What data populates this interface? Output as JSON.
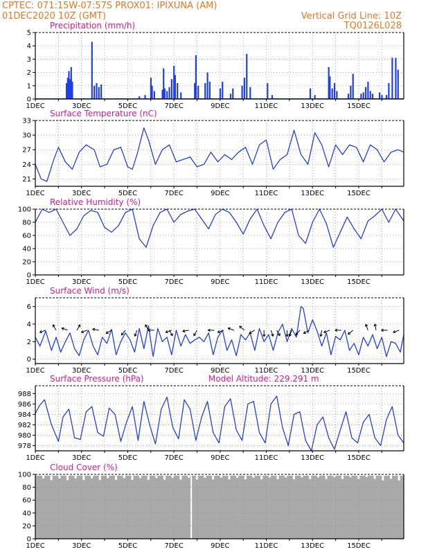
{
  "header": {
    "line1_left": "CPTEC:   071:15W-07:57S   PROX01: IPIXUNA (AM)",
    "line2_left": "01DEC2020 10Z (GMT)",
    "line2_right": "Vertical Grid Line: 10Z",
    "line3_right": "TQ0126L028"
  },
  "colors": {
    "header": "#e87722",
    "panel_title": "#e0178c",
    "series": "#1f3fe6",
    "cloud": "#a9a9a9",
    "arrow": "#000000",
    "grid": "#8a8a8a"
  },
  "chart_data": [
    {
      "id": "precip",
      "type": "bar",
      "title": "Precipitation (mm/h)",
      "ylim": [
        0,
        5
      ],
      "yticks": [
        0,
        1,
        2,
        3,
        4,
        5
      ],
      "grid": true,
      "x_unit": "days since 01DEC2020 10Z",
      "x_ticks": [
        "1DEC",
        "3DEC",
        "5DEC",
        "7DEC",
        "9DEC",
        "11DEC",
        "13DEC",
        "15DEC"
      ],
      "events": [
        {
          "x": 1.35,
          "y": 1.2
        },
        {
          "x": 1.4,
          "y": 1.6
        },
        {
          "x": 1.45,
          "y": 2.1
        },
        {
          "x": 1.5,
          "y": 1.5
        },
        {
          "x": 1.55,
          "y": 2.4
        },
        {
          "x": 1.6,
          "y": 1.3
        },
        {
          "x": 2.45,
          "y": 4.3
        },
        {
          "x": 2.55,
          "y": 1.0
        },
        {
          "x": 2.65,
          "y": 1.2
        },
        {
          "x": 2.75,
          "y": 0.9
        },
        {
          "x": 2.85,
          "y": 1.1
        },
        {
          "x": 4.5,
          "y": 0.2
        },
        {
          "x": 4.75,
          "y": 0.3
        },
        {
          "x": 5.0,
          "y": 1.6
        },
        {
          "x": 5.05,
          "y": 1.0
        },
        {
          "x": 5.15,
          "y": 0.6
        },
        {
          "x": 5.5,
          "y": 0.7
        },
        {
          "x": 5.55,
          "y": 2.3
        },
        {
          "x": 5.6,
          "y": 0.8
        },
        {
          "x": 5.7,
          "y": 0.6
        },
        {
          "x": 5.8,
          "y": 0.9
        },
        {
          "x": 5.9,
          "y": 1.5
        },
        {
          "x": 6.0,
          "y": 2.5
        },
        {
          "x": 6.05,
          "y": 1.8
        },
        {
          "x": 6.15,
          "y": 1.2
        },
        {
          "x": 6.3,
          "y": 0.5
        },
        {
          "x": 6.9,
          "y": 1.2
        },
        {
          "x": 6.95,
          "y": 3.3
        },
        {
          "x": 7.05,
          "y": 1.0
        },
        {
          "x": 7.35,
          "y": 1.2
        },
        {
          "x": 7.45,
          "y": 2.0
        },
        {
          "x": 7.55,
          "y": 1.3
        },
        {
          "x": 8.0,
          "y": 0.8
        },
        {
          "x": 8.1,
          "y": 1.3
        },
        {
          "x": 8.45,
          "y": 0.4
        },
        {
          "x": 8.55,
          "y": 0.8
        },
        {
          "x": 8.95,
          "y": 1.0
        },
        {
          "x": 9.05,
          "y": 1.6
        },
        {
          "x": 9.15,
          "y": 3.4
        },
        {
          "x": 9.3,
          "y": 0.9
        },
        {
          "x": 10.05,
          "y": 1.2
        },
        {
          "x": 10.25,
          "y": 0.3
        },
        {
          "x": 11.9,
          "y": 0.8
        },
        {
          "x": 12.1,
          "y": 0.3
        },
        {
          "x": 12.7,
          "y": 2.4
        },
        {
          "x": 12.75,
          "y": 1.7
        },
        {
          "x": 12.85,
          "y": 0.8
        },
        {
          "x": 12.95,
          "y": 1.2
        },
        {
          "x": 13.05,
          "y": 0.6
        },
        {
          "x": 13.55,
          "y": 0.4
        },
        {
          "x": 13.65,
          "y": 1.0
        },
        {
          "x": 13.75,
          "y": 1.9
        },
        {
          "x": 14.1,
          "y": 0.4
        },
        {
          "x": 14.2,
          "y": 0.5
        },
        {
          "x": 14.3,
          "y": 0.9
        },
        {
          "x": 14.4,
          "y": 1.3
        },
        {
          "x": 14.5,
          "y": 0.6
        },
        {
          "x": 14.6,
          "y": 0.4
        },
        {
          "x": 14.9,
          "y": 0.5
        },
        {
          "x": 15.0,
          "y": 0.3
        },
        {
          "x": 15.2,
          "y": 0.3
        },
        {
          "x": 15.3,
          "y": 1.2
        },
        {
          "x": 15.45,
          "y": 3.1
        },
        {
          "x": 15.6,
          "y": 3.1
        },
        {
          "x": 15.7,
          "y": 2.2
        }
      ]
    },
    {
      "id": "temperature",
      "type": "line",
      "title": "Surface Temperature (nC)",
      "ylim": [
        19.5,
        33
      ],
      "yticks": [
        21,
        24,
        27,
        30,
        33
      ],
      "grid": true,
      "x_unit": "days since 01DEC2020 10Z",
      "x_ticks": [
        "1DEC",
        "3DEC",
        "5DEC",
        "7DEC",
        "9DEC",
        "11DEC",
        "13DEC",
        "15DEC"
      ],
      "x": [
        0,
        0.25,
        0.5,
        0.8,
        1.0,
        1.3,
        1.6,
        1.9,
        2.2,
        2.55,
        2.8,
        3.1,
        3.4,
        3.7,
        4.0,
        4.2,
        4.4,
        4.7,
        4.9,
        5.2,
        5.5,
        5.8,
        6.1,
        6.4,
        6.7,
        7.0,
        7.3,
        7.6,
        7.9,
        8.2,
        8.5,
        8.8,
        9.1,
        9.4,
        9.7,
        10.0,
        10.3,
        10.6,
        10.9,
        11.2,
        11.5,
        11.8,
        12.1,
        12.4,
        12.7,
        13.0,
        13.3,
        13.6,
        13.9,
        14.2,
        14.5,
        14.8,
        15.1,
        15.4,
        15.7,
        15.95
      ],
      "y": [
        24,
        21,
        20.5,
        25,
        27.5,
        24.5,
        23,
        26.5,
        28,
        27,
        23.5,
        24,
        27,
        27.5,
        23.5,
        23,
        26,
        31.5,
        29,
        24,
        27,
        28,
        24.5,
        25,
        25.5,
        23.5,
        24,
        26.5,
        24.5,
        26,
        25,
        26.5,
        27.5,
        24,
        28,
        29,
        23,
        25,
        26,
        31,
        26,
        24,
        30.5,
        28,
        23.5,
        28,
        26,
        28,
        27.5,
        24.5,
        28,
        27,
        24.5,
        26.5,
        27,
        26.5
      ]
    },
    {
      "id": "humidity",
      "type": "line",
      "title": "Relative Humidity (%)",
      "ylim": [
        0,
        100
      ],
      "yticks": [
        0,
        20,
        40,
        60,
        80,
        100
      ],
      "grid": true,
      "x_unit": "days since 01DEC2020 10Z",
      "x_ticks": [
        "1DEC",
        "3DEC",
        "5DEC",
        "7DEC",
        "9DEC",
        "11DEC",
        "13DEC",
        "15DEC"
      ],
      "x": [
        0,
        0.3,
        0.6,
        0.9,
        1.2,
        1.5,
        1.8,
        2.1,
        2.4,
        2.7,
        3.0,
        3.3,
        3.6,
        3.9,
        4.2,
        4.5,
        4.8,
        5.1,
        5.4,
        5.7,
        6.0,
        6.3,
        6.6,
        6.9,
        7.2,
        7.5,
        7.8,
        8.1,
        8.4,
        8.7,
        9.0,
        9.3,
        9.6,
        9.9,
        10.2,
        10.5,
        10.8,
        11.1,
        11.4,
        11.7,
        12.0,
        12.3,
        12.6,
        12.9,
        13.2,
        13.5,
        13.8,
        14.1,
        14.4,
        14.7,
        15.0,
        15.3,
        15.6,
        15.95
      ],
      "y": [
        80,
        100,
        95,
        100,
        80,
        60,
        70,
        90,
        98,
        95,
        72,
        65,
        75,
        95,
        100,
        55,
        42,
        75,
        95,
        100,
        80,
        92,
        97,
        100,
        85,
        70,
        92,
        100,
        95,
        80,
        62,
        85,
        100,
        75,
        55,
        80,
        95,
        100,
        60,
        48,
        80,
        100,
        78,
        42,
        65,
        88,
        70,
        55,
        82,
        90,
        100,
        80,
        100,
        82
      ]
    },
    {
      "id": "wind",
      "type": "line",
      "title": "Surface Wind (m/s)",
      "ylim": [
        -0.5,
        7
      ],
      "yticks": [
        0,
        2,
        4,
        6
      ],
      "grid": true,
      "x_unit": "days since 01DEC2020 10Z",
      "x_ticks": [
        "1DEC",
        "3DEC",
        "5DEC",
        "7DEC",
        "9DEC",
        "11DEC",
        "13DEC",
        "15DEC"
      ],
      "x": [
        0,
        0.2,
        0.45,
        0.7,
        0.9,
        1.1,
        1.3,
        1.5,
        1.7,
        1.9,
        2.1,
        2.3,
        2.5,
        2.7,
        2.9,
        3.1,
        3.3,
        3.5,
        3.7,
        3.9,
        4.1,
        4.3,
        4.5,
        4.7,
        4.9,
        5.1,
        5.3,
        5.5,
        5.7,
        5.9,
        6.1,
        6.3,
        6.5,
        6.7,
        6.9,
        7.1,
        7.3,
        7.5,
        7.7,
        7.9,
        8.1,
        8.3,
        8.5,
        8.7,
        8.9,
        9.1,
        9.3,
        9.5,
        9.7,
        9.9,
        10.1,
        10.3,
        10.5,
        10.7,
        10.9,
        11.1,
        11.3,
        11.5,
        11.6,
        11.8,
        12.0,
        12.2,
        12.4,
        12.6,
        12.8,
        13.0,
        13.2,
        13.4,
        13.6,
        13.8,
        14.0,
        14.2,
        14.4,
        14.6,
        14.8,
        15.0,
        15.2,
        15.4,
        15.6,
        15.8,
        15.95
      ],
      "y": [
        2.5,
        1.5,
        3.2,
        1.0,
        2.5,
        0.8,
        2.0,
        3.0,
        1.2,
        0.4,
        2.2,
        3.3,
        1.5,
        0.5,
        2.5,
        1.8,
        3.4,
        0.5,
        2.0,
        3.0,
        2.2,
        0.8,
        3.5,
        1.2,
        3.8,
        0.3,
        3.5,
        2.0,
        2.5,
        0.5,
        3.3,
        1.5,
        2.8,
        1.8,
        2.2,
        2.5,
        2.0,
        3.0,
        0.5,
        2.5,
        3.3,
        1.0,
        2.2,
        0.4,
        2.8,
        2.2,
        3.0,
        1.0,
        3.5,
        2.0,
        2.8,
        1.0,
        3.0,
        4.0,
        2.0,
        3.5,
        2.5,
        6.0,
        5.8,
        3.0,
        4.5,
        3.2,
        1.5,
        3.0,
        0.5,
        2.6,
        2.2,
        3.3,
        1.0,
        1.8,
        0.5,
        2.5,
        1.5,
        2.8,
        1.2,
        2.5,
        0.3,
        2.0,
        1.8,
        0.8,
        2.8
      ],
      "arrow_angles_deg": [
        200,
        120,
        160,
        60,
        200,
        170,
        210,
        230,
        250,
        120,
        180,
        300,
        200,
        190,
        240,
        180,
        200,
        160,
        140,
        210,
        270,
        290,
        300,
        270,
        250,
        230,
        210,
        260,
        200,
        180,
        220,
        110,
        100,
        180,
        200
      ],
      "arrow_x": [
        0.45,
        0.9,
        1.4,
        1.8,
        2.25,
        2.75,
        3.3,
        3.9,
        4.4,
        4.9,
        5.15,
        5.8,
        5.9,
        6.65,
        7.0,
        7.75,
        8.15,
        8.6,
        9.05,
        9.5,
        9.9,
        10.2,
        10.45,
        10.9,
        11.1,
        11.45,
        11.85,
        12.4,
        12.75,
        13.25,
        13.75,
        14.4,
        14.75,
        15.25,
        15.75
      ]
    },
    {
      "id": "pressure",
      "type": "line",
      "title": "Surface Pressure (hPa)",
      "annotation": "Model Altitude: 229.291 m",
      "ylim": [
        977,
        989.5
      ],
      "yticks": [
        978,
        980,
        982,
        984,
        986,
        988
      ],
      "grid": true,
      "x_unit": "days since 01DEC2020 10Z",
      "x_ticks": [
        "1DEC",
        "3DEC",
        "5DEC",
        "7DEC",
        "9DEC",
        "11DEC",
        "13DEC",
        "15DEC"
      ],
      "x": [
        0,
        0.2,
        0.4,
        0.7,
        1.0,
        1.2,
        1.45,
        1.7,
        1.95,
        2.2,
        2.45,
        2.7,
        2.95,
        3.2,
        3.45,
        3.7,
        3.95,
        4.2,
        4.45,
        4.7,
        4.95,
        5.2,
        5.45,
        5.7,
        5.95,
        6.2,
        6.45,
        6.7,
        6.95,
        7.2,
        7.45,
        7.7,
        7.95,
        8.2,
        8.45,
        8.7,
        8.95,
        9.2,
        9.45,
        9.7,
        9.95,
        10.2,
        10.45,
        10.7,
        10.95,
        11.2,
        11.45,
        11.7,
        11.95,
        12.2,
        12.45,
        12.7,
        12.95,
        13.2,
        13.45,
        13.7,
        13.95,
        14.2,
        14.45,
        14.7,
        14.95,
        15.2,
        15.45,
        15.7,
        15.95
      ],
      "y": [
        984.2,
        985.8,
        986.8,
        982.0,
        978.8,
        983.5,
        985.0,
        979.5,
        979.2,
        984.5,
        985.5,
        980.5,
        979.8,
        985.2,
        984.0,
        978.8,
        982.5,
        985.5,
        979.0,
        986.5,
        982.0,
        978.3,
        985.0,
        987.3,
        981.5,
        979.3,
        986.8,
        985.0,
        979.0,
        983.5,
        986.5,
        980.5,
        978.5,
        985.5,
        987.0,
        981.0,
        979.0,
        986.0,
        986.5,
        980.5,
        978.5,
        986.0,
        987.5,
        981.5,
        978.0,
        984.0,
        984.5,
        979.0,
        976.8,
        982.0,
        983.5,
        979.5,
        977.3,
        981.0,
        984.5,
        979.5,
        978.5,
        982.5,
        984.0,
        979.5,
        978.0,
        983.0,
        985.5,
        980.0,
        978.5
      ]
    },
    {
      "id": "cloud",
      "type": "area",
      "title": "Cloud Cover (%)",
      "ylim": [
        0,
        100
      ],
      "yticks": [
        0,
        20,
        40,
        60,
        80,
        100
      ],
      "grid": true,
      "x_unit": "days since 01DEC2020 10Z",
      "x_ticks": [
        "1DEC",
        "3DEC",
        "5DEC",
        "7DEC",
        "9DEC",
        "11DEC",
        "13DEC",
        "15DEC"
      ],
      "value_note": "mostly ~96-100%, thin white gap near 6.7 days",
      "gap_x": 6.72,
      "fill_level": 98
    }
  ]
}
